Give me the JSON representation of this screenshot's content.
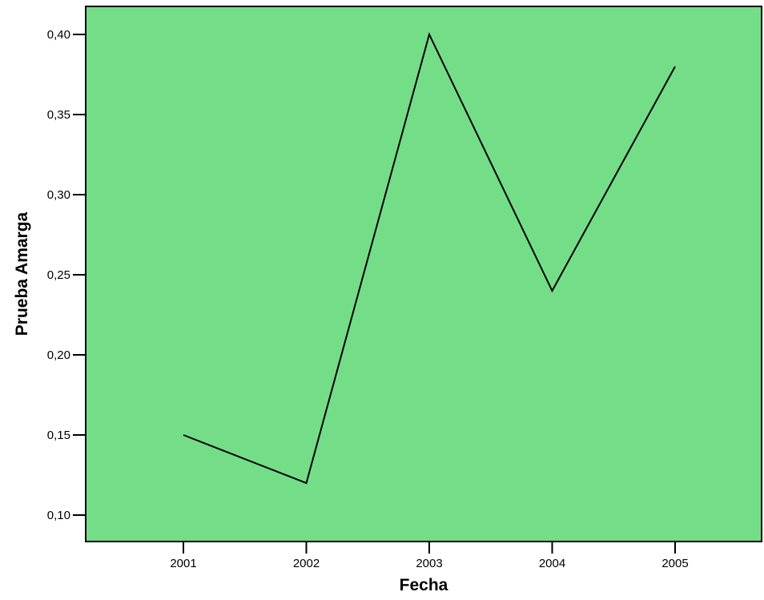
{
  "chart_data": {
    "type": "line",
    "title": "",
    "xlabel": "Fecha",
    "ylabel": "Prueba Amarga",
    "categories": [
      "2001",
      "2002",
      "2003",
      "2004",
      "2005"
    ],
    "series": [
      {
        "values": [
          0.15,
          0.12,
          0.4,
          0.24,
          0.38
        ]
      }
    ],
    "yticks": [
      0.1,
      0.15,
      0.2,
      0.25,
      0.3,
      0.35,
      0.4
    ],
    "ytick_labels": [
      "0,10",
      "0,15",
      "0,20",
      "0,25",
      "0,30",
      "0,35",
      "0,40"
    ],
    "grid": false,
    "legend": "none",
    "colors": {
      "plot_background": "#73dd88",
      "line": "#000000",
      "axis": "#000000"
    }
  }
}
